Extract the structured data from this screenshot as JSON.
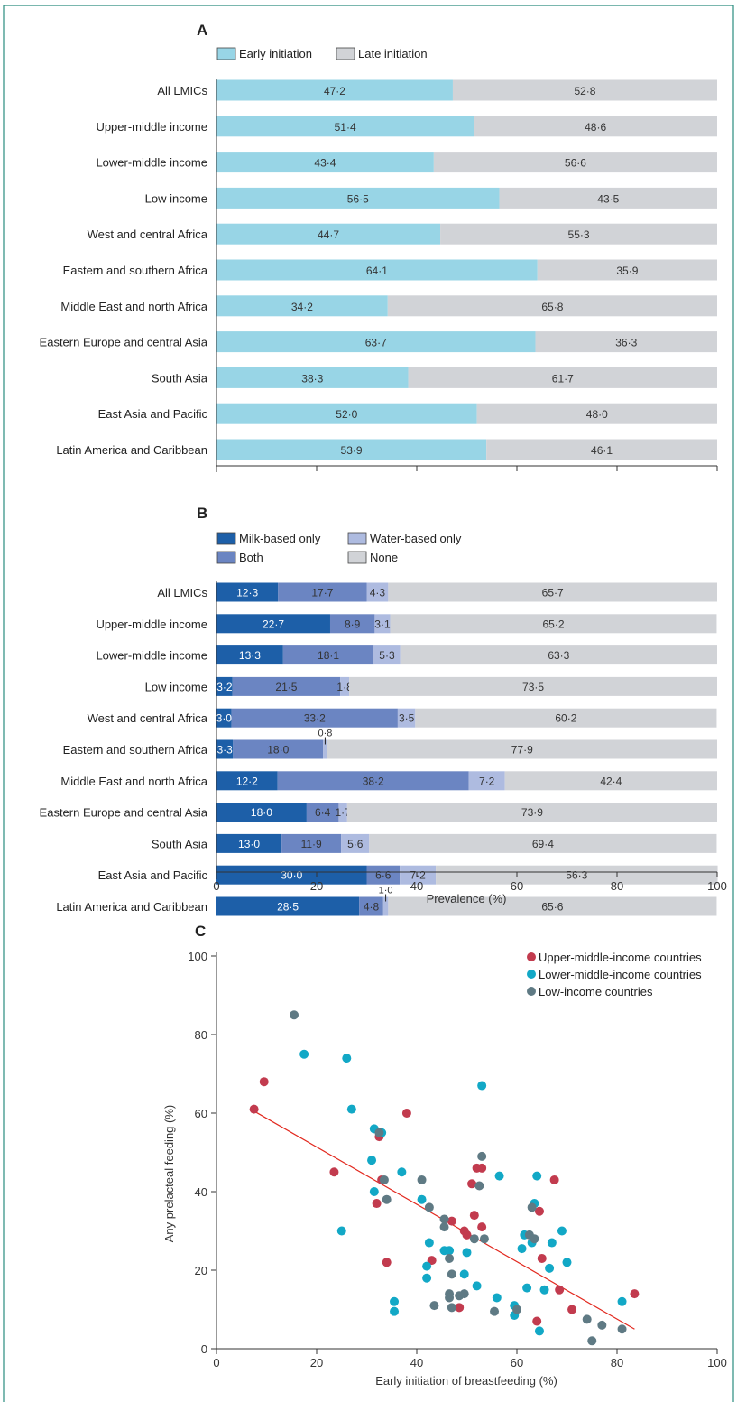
{
  "panel_letters": [
    "A",
    "B",
    "C"
  ],
  "categories": [
    "All LMICs",
    "Upper-middle income",
    "Lower-middle income",
    "Low income",
    "West and central Africa",
    "Eastern and southern Africa",
    "Middle East and north Africa",
    "Eastern Europe and central Asia",
    "South Asia",
    "East Asia and Pacific",
    "Latin America and Caribbean"
  ],
  "colors": {
    "early": "#98d5e6",
    "late": "#d1d3d7",
    "milk": "#1d5fa8",
    "both": "#6b85c2",
    "water": "#aebbe0",
    "none": "#d1d3d7",
    "upper": "#c23b4e",
    "lower": "#12a8c6",
    "low": "#5f7a84",
    "trend": "#e2281e",
    "frame": "#2a8c7e"
  },
  "chart_data": [
    {
      "type": "bar",
      "orientation": "horizontal-stacked",
      "title": "A",
      "categories": [
        "All LMICs",
        "Upper-middle income",
        "Lower-middle income",
        "Low income",
        "West and central Africa",
        "Eastern and southern Africa",
        "Middle East and north Africa",
        "Eastern Europe and central Asia",
        "South Asia",
        "East Asia and Pacific",
        "Latin America and Caribbean"
      ],
      "series": [
        {
          "name": "Early initiation",
          "values": [
            47.2,
            51.4,
            43.4,
            56.5,
            44.7,
            64.1,
            34.2,
            63.7,
            38.3,
            52.0,
            53.9
          ],
          "labels": [
            "47·2",
            "51·4",
            "43·4",
            "56·5",
            "44·7",
            "64·1",
            "34·2",
            "63·7",
            "38·3",
            "52·0",
            "53·9"
          ]
        },
        {
          "name": "Late initiation",
          "values": [
            52.8,
            48.6,
            56.6,
            43.5,
            55.3,
            35.9,
            65.8,
            36.3,
            61.7,
            48.0,
            46.1
          ],
          "labels": [
            "52·8",
            "48·6",
            "56·6",
            "43·5",
            "55·3",
            "35·9",
            "65·8",
            "36·3",
            "61·7",
            "48·0",
            "46·1"
          ]
        }
      ],
      "xlim": [
        0,
        100
      ]
    },
    {
      "type": "bar",
      "orientation": "horizontal-stacked",
      "title": "B",
      "categories": [
        "All LMICs",
        "Upper-middle income",
        "Lower-middle income",
        "Low income",
        "West and central Africa",
        "Eastern and southern Africa",
        "Middle East and north Africa",
        "Eastern Europe and central Asia",
        "South Asia",
        "East Asia and Pacific",
        "Latin America and Caribbean"
      ],
      "series": [
        {
          "name": "Milk-based only",
          "values": [
            12.3,
            22.7,
            13.3,
            3.2,
            3.0,
            3.3,
            12.2,
            18.0,
            13.0,
            30.0,
            28.5
          ],
          "labels": [
            "12·3",
            "22·7",
            "13·3",
            "3·2",
            "3·0",
            "3·3",
            "12·2",
            "18·0",
            "13·0",
            "30·0",
            "28·5"
          ]
        },
        {
          "name": "Both",
          "values": [
            17.7,
            8.9,
            18.1,
            21.5,
            33.2,
            18.0,
            38.2,
            6.4,
            11.9,
            6.6,
            4.8
          ],
          "labels": [
            "17·7",
            "8·9",
            "18·1",
            "21·5",
            "33·2",
            "18·0",
            "38·2",
            "6·4",
            "11·9",
            "6·6",
            "4·8"
          ]
        },
        {
          "name": "Water-based only",
          "values": [
            4.3,
            3.1,
            5.3,
            1.8,
            3.5,
            0.8,
            7.2,
            1.7,
            5.6,
            7.2,
            1.0
          ],
          "labels": [
            "4·3",
            "3·1",
            "5·3",
            "1·8",
            "3·5",
            "0·8",
            "7·2",
            "1·7",
            "5·6",
            "7·2",
            "1·0"
          ]
        },
        {
          "name": "None",
          "values": [
            65.7,
            65.2,
            63.3,
            73.5,
            60.2,
            77.9,
            42.4,
            73.9,
            69.4,
            56.3,
            65.6
          ],
          "labels": [
            "65·7",
            "65·2",
            "63·3",
            "73·5",
            "60·2",
            "77·9",
            "42·4",
            "73·9",
            "69·4",
            "56·3",
            "65·6"
          ]
        }
      ],
      "xlabel": "Prevalence (%)",
      "xticks": [
        "0",
        "20",
        "40",
        "60",
        "80",
        "100"
      ],
      "xlim": [
        0,
        100
      ]
    },
    {
      "type": "scatter",
      "title": "C",
      "xlabel": "Early initiation of breastfeeding (%)",
      "ylabel": "Any prelacteal feeding (%)",
      "xticks": [
        "0",
        "20",
        "40",
        "60",
        "80",
        "100"
      ],
      "yticks": [
        "0",
        "20",
        "40",
        "60",
        "80",
        "100"
      ],
      "xlim": [
        0,
        100
      ],
      "ylim": [
        0,
        100
      ],
      "legend_position": "top-right",
      "series": [
        {
          "name": "Upper-middle-income countries",
          "points": [
            [
              7.5,
              61
            ],
            [
              9.5,
              68
            ],
            [
              23.5,
              45
            ],
            [
              32,
              37
            ],
            [
              32.5,
              54
            ],
            [
              33,
              43
            ],
            [
              34,
              22
            ],
            [
              38,
              60
            ],
            [
              43,
              22.5
            ],
            [
              47,
              32.5
            ],
            [
              48.5,
              10.5
            ],
            [
              49.5,
              30
            ],
            [
              50,
              29
            ],
            [
              51,
              42
            ],
            [
              51.5,
              34
            ],
            [
              52,
              46
            ],
            [
              53,
              46
            ],
            [
              53,
              31
            ],
            [
              64,
              7
            ],
            [
              64.5,
              35
            ],
            [
              65,
              23
            ],
            [
              67.5,
              43
            ],
            [
              68.5,
              15
            ],
            [
              71,
              10
            ],
            [
              83.5,
              14
            ]
          ]
        },
        {
          "name": "Lower-middle-income countries",
          "points": [
            [
              17.5,
              75
            ],
            [
              25,
              30
            ],
            [
              26,
              74
            ],
            [
              27,
              61
            ],
            [
              31,
              48
            ],
            [
              31.5,
              56
            ],
            [
              31.5,
              40
            ],
            [
              33,
              55
            ],
            [
              35.5,
              9.5
            ],
            [
              35.5,
              12
            ],
            [
              37,
              45
            ],
            [
              41,
              38
            ],
            [
              42,
              21
            ],
            [
              42,
              18
            ],
            [
              42.5,
              27
            ],
            [
              45.5,
              25
            ],
            [
              46.5,
              25
            ],
            [
              49.5,
              19
            ],
            [
              50,
              24.5
            ],
            [
              52,
              16
            ],
            [
              53,
              67
            ],
            [
              56,
              13
            ],
            [
              56.5,
              44
            ],
            [
              59.5,
              11
            ],
            [
              59.5,
              8.5
            ],
            [
              61,
              25.5
            ],
            [
              61.5,
              29
            ],
            [
              62,
              15.5
            ],
            [
              63,
              27
            ],
            [
              63.5,
              37
            ],
            [
              64,
              44
            ],
            [
              64.5,
              4.5
            ],
            [
              65.5,
              15
            ],
            [
              66.5,
              20.5
            ],
            [
              67,
              27
            ],
            [
              69,
              30
            ],
            [
              70,
              22
            ],
            [
              81,
              12
            ]
          ]
        },
        {
          "name": "Low-income countries",
          "points": [
            [
              15.5,
              85
            ],
            [
              32.5,
              55
            ],
            [
              33.5,
              43
            ],
            [
              34,
              38
            ],
            [
              41,
              43
            ],
            [
              42.5,
              36
            ],
            [
              43.5,
              11
            ],
            [
              45.5,
              31
            ],
            [
              45.5,
              33
            ],
            [
              46.5,
              14
            ],
            [
              46.5,
              13
            ],
            [
              46.5,
              23
            ],
            [
              47,
              19
            ],
            [
              47,
              10.5
            ],
            [
              48.5,
              13.5
            ],
            [
              49.5,
              14
            ],
            [
              51.5,
              28
            ],
            [
              52.5,
              41.5
            ],
            [
              53,
              49
            ],
            [
              53.5,
              28
            ],
            [
              55.5,
              9.5
            ],
            [
              60,
              10
            ],
            [
              62.5,
              29
            ],
            [
              63,
              36
            ],
            [
              63.5,
              28
            ],
            [
              74,
              7.5
            ],
            [
              75,
              2
            ],
            [
              77,
              6
            ],
            [
              81,
              5
            ]
          ]
        }
      ],
      "trendline": [
        [
          7.5,
          60.5
        ],
        [
          83.5,
          5
        ]
      ]
    }
  ]
}
